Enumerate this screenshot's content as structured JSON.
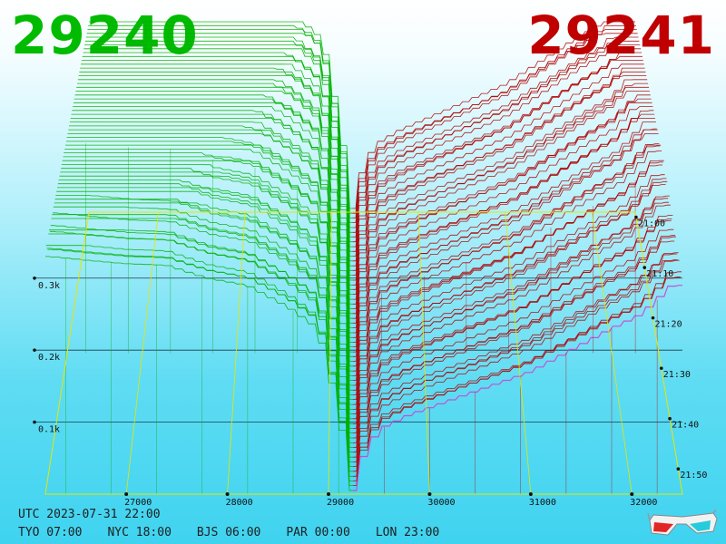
{
  "header": {
    "bid_price": "29240",
    "ask_price": "29241",
    "bid_color": "#00bb00",
    "ask_color": "#c00000"
  },
  "clocks": {
    "utc": "UTC 2023-07-31 22:00",
    "zones": [
      "TYO 07:00",
      "NYC 18:00",
      "BJS 06:00",
      "PAR 00:00",
      "LON 23:00"
    ]
  },
  "chart_data": {
    "type": "area",
    "x": {
      "ticks": [
        27000,
        28000,
        29000,
        30000,
        31000,
        32000
      ],
      "tick_labels": [
        "27000",
        "28000",
        "29000",
        "30000",
        "31000",
        "32000"
      ],
      "range": [
        26200,
        32500
      ]
    },
    "volume": {
      "ticks": [
        100,
        200,
        300
      ],
      "tick_labels": [
        "0.1k",
        "0.2k",
        "0.3k"
      ]
    },
    "time": {
      "ticks": [
        "21:00",
        "21:10",
        "21:20",
        "21:30",
        "21:40",
        "21:50"
      ],
      "range": [
        "20:58",
        "21:58"
      ]
    },
    "mid_price": 29240.5,
    "series": [
      {
        "side": "bid",
        "color": "#00b000"
      },
      {
        "side": "ask",
        "color": "#b00000"
      }
    ],
    "latest_ask_color": "#cc44cc",
    "grid": true,
    "frame_color": "#e6e600",
    "snapshot_count": 60,
    "bid_cum_depth_front": [
      [
        26250,
        330
      ],
      [
        26600,
        325
      ],
      [
        27000,
        320
      ],
      [
        27400,
        318
      ],
      [
        27800,
        300
      ],
      [
        28200,
        290
      ],
      [
        28600,
        260
      ],
      [
        28900,
        230
      ],
      [
        29100,
        120
      ],
      [
        29200,
        40
      ],
      [
        29240,
        5
      ]
    ],
    "ask_cum_depth_front": [
      [
        29241,
        5
      ],
      [
        29300,
        40
      ],
      [
        29500,
        90
      ],
      [
        29800,
        110
      ],
      [
        30200,
        130
      ],
      [
        30600,
        150
      ],
      [
        31000,
        170
      ],
      [
        31400,
        200
      ],
      [
        31800,
        230
      ],
      [
        32100,
        250
      ],
      [
        32400,
        290
      ]
    ]
  },
  "badge": {
    "icon": "3d-glasses-icon"
  }
}
